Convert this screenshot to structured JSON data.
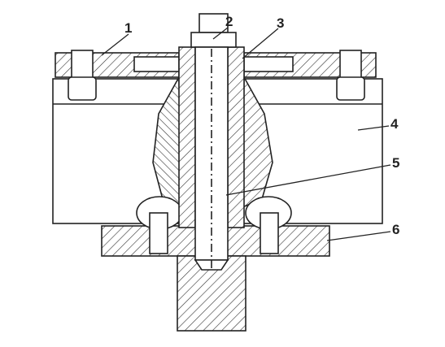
{
  "callouts": [
    "1",
    "2",
    "3",
    "4",
    "5",
    "6"
  ]
}
